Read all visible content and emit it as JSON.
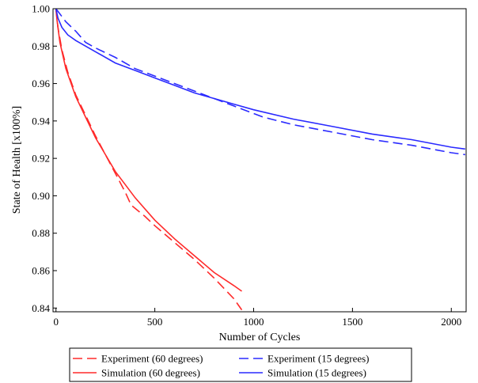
{
  "chart_data": {
    "type": "line",
    "title": "",
    "xlabel": "Number of Cycles",
    "ylabel": "State of Health [x100%]",
    "xlim": [
      -15,
      2075
    ],
    "ylim": [
      0.838,
      1.0
    ],
    "xticks": [
      0,
      500,
      1000,
      1500,
      2000
    ],
    "yticks": [
      0.84,
      0.86,
      0.88,
      0.9,
      0.92,
      0.94,
      0.96,
      0.98,
      1.0
    ],
    "xtick_labels": [
      "0",
      "500",
      "1000",
      "1500",
      "2000"
    ],
    "ytick_labels": [
      "0.84",
      "0.86",
      "0.88",
      "0.90",
      "0.92",
      "0.94",
      "0.96",
      "0.98",
      "1.00"
    ],
    "grid": false,
    "legend_position": "bottom",
    "series": [
      {
        "name": "Experiment (60 degrees)",
        "color": "#ff2a2a",
        "style": "dashed",
        "points": [
          [
            0,
            1.0
          ],
          [
            10,
            0.99
          ],
          [
            30,
            0.978
          ],
          [
            60,
            0.966
          ],
          [
            100,
            0.954
          ],
          [
            150,
            0.943
          ],
          [
            200,
            0.932
          ],
          [
            250,
            0.922
          ],
          [
            300,
            0.912
          ],
          [
            350,
            0.902
          ],
          [
            380,
            0.895
          ],
          [
            450,
            0.889
          ],
          [
            500,
            0.884
          ],
          [
            600,
            0.875
          ],
          [
            700,
            0.866
          ],
          [
            800,
            0.856
          ],
          [
            900,
            0.845
          ],
          [
            940,
            0.839
          ]
        ]
      },
      {
        "name": "Simulation (60 degrees)",
        "color": "#ff2a2a",
        "style": "solid",
        "points": [
          [
            0,
            1.0
          ],
          [
            5,
            0.994
          ],
          [
            20,
            0.982
          ],
          [
            50,
            0.968
          ],
          [
            100,
            0.953
          ],
          [
            150,
            0.942
          ],
          [
            200,
            0.931
          ],
          [
            250,
            0.922
          ],
          [
            300,
            0.913
          ],
          [
            350,
            0.906
          ],
          [
            400,
            0.899
          ],
          [
            500,
            0.887
          ],
          [
            600,
            0.877
          ],
          [
            700,
            0.868
          ],
          [
            800,
            0.859
          ],
          [
            900,
            0.852
          ],
          [
            940,
            0.849
          ]
        ]
      },
      {
        "name": "Experiment (15 degrees)",
        "color": "#2a2aff",
        "style": "dashed",
        "points": [
          [
            0,
            1.0
          ],
          [
            50,
            0.993
          ],
          [
            100,
            0.988
          ],
          [
            150,
            0.982
          ],
          [
            200,
            0.979
          ],
          [
            300,
            0.974
          ],
          [
            400,
            0.968
          ],
          [
            500,
            0.964
          ],
          [
            600,
            0.96
          ],
          [
            700,
            0.956
          ],
          [
            800,
            0.952
          ],
          [
            900,
            0.948
          ],
          [
            1000,
            0.944
          ],
          [
            1050,
            0.942
          ],
          [
            1200,
            0.938
          ],
          [
            1400,
            0.934
          ],
          [
            1600,
            0.93
          ],
          [
            1800,
            0.927
          ],
          [
            2000,
            0.923
          ],
          [
            2070,
            0.922
          ]
        ]
      },
      {
        "name": "Simulation (15 degrees)",
        "color": "#2a2aff",
        "style": "solid",
        "points": [
          [
            0,
            1.0
          ],
          [
            10,
            0.995
          ],
          [
            30,
            0.99
          ],
          [
            60,
            0.986
          ],
          [
            100,
            0.983
          ],
          [
            150,
            0.98
          ],
          [
            200,
            0.977
          ],
          [
            300,
            0.971
          ],
          [
            400,
            0.967
          ],
          [
            500,
            0.963
          ],
          [
            600,
            0.959
          ],
          [
            700,
            0.955
          ],
          [
            800,
            0.952
          ],
          [
            900,
            0.949
          ],
          [
            1000,
            0.946
          ],
          [
            1200,
            0.941
          ],
          [
            1400,
            0.937
          ],
          [
            1600,
            0.933
          ],
          [
            1800,
            0.93
          ],
          [
            2000,
            0.926
          ],
          [
            2070,
            0.925
          ]
        ]
      }
    ],
    "legend": {
      "entries": [
        "Experiment (60 degrees)",
        "Experiment (15 degrees)",
        "Simulation (60 degrees)",
        "Simulation (15 degrees)"
      ]
    }
  }
}
